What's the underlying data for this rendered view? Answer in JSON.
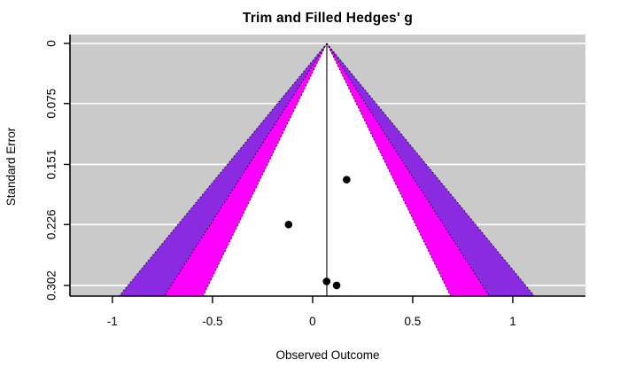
{
  "chart_data": {
    "type": "funnel",
    "title": "Trim and Filled Hedges' g",
    "xlabel": "Observed Outcome",
    "ylabel": "Standard Error",
    "x_ticks": [
      {
        "value": -1,
        "label": "-1"
      },
      {
        "value": -0.5,
        "label": "-0.5"
      },
      {
        "value": 0,
        "label": "0"
      },
      {
        "value": 0.5,
        "label": "0.5"
      },
      {
        "value": 1,
        "label": "1"
      }
    ],
    "y_ticks": [
      {
        "value": 0,
        "label": "0"
      },
      {
        "value": 0.075,
        "label": "0.075"
      },
      {
        "value": 0.151,
        "label": "0.151"
      },
      {
        "value": 0.226,
        "label": "0.226"
      },
      {
        "value": 0.302,
        "label": "0.302"
      }
    ],
    "xlim": [
      -1.212,
      1.363
    ],
    "ylim": [
      -0.011,
      0.3153
    ],
    "estimate": 0.071,
    "funnel_contours": [
      {
        "level": "99.9%",
        "z": 3.2905,
        "color": "#8a2be2"
      },
      {
        "level": "99%",
        "z": 2.576,
        "color": "#ff00ff"
      },
      {
        "level": "95%",
        "z": 1.96,
        "color": "#ffffff"
      }
    ],
    "points": [
      {
        "x": 0.17,
        "se": 0.17
      },
      {
        "x": -0.12,
        "se": 0.226
      },
      {
        "x": 0.07,
        "se": 0.297
      },
      {
        "x": 0.12,
        "se": 0.302
      }
    ],
    "colors": {
      "plot_background": "#cacaca",
      "gridline": "#ffffff",
      "point": "#000000",
      "axis": "#000000",
      "center_line": "#000000",
      "contour_edge": "#000000"
    },
    "grid": true,
    "legend": false
  }
}
